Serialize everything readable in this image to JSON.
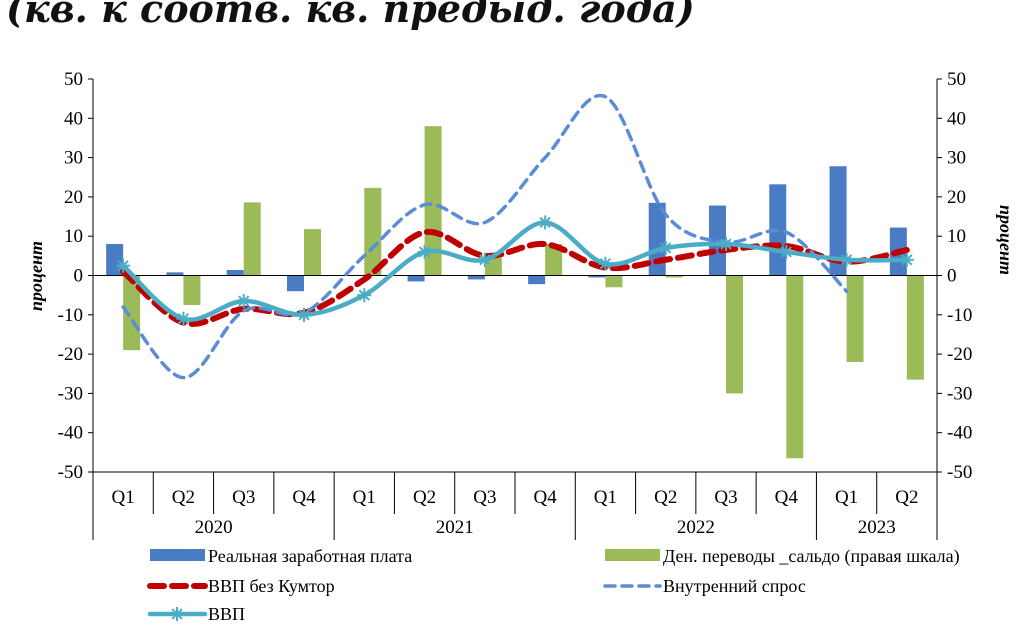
{
  "title": "(кв. к соотв. кв. предыд. года)",
  "chart_data": {
    "type": "bar",
    "categories": [
      "Q1",
      "Q2",
      "Q3",
      "Q4",
      "Q1",
      "Q2",
      "Q3",
      "Q4",
      "Q1",
      "Q2",
      "Q3",
      "Q4",
      "Q1",
      "Q2"
    ],
    "years": [
      {
        "label": "2020",
        "span": 4
      },
      {
        "label": "2021",
        "span": 4
      },
      {
        "label": "2022",
        "span": 4
      },
      {
        "label": "2023",
        "span": 2
      }
    ],
    "ylabel": "процент",
    "ylabel_right": "процент",
    "ylim": [
      -50,
      50
    ],
    "yticks": [
      -50,
      -40,
      -30,
      -20,
      -10,
      0,
      10,
      20,
      30,
      40,
      50
    ],
    "y2lim": [
      -50,
      50
    ],
    "grid": false,
    "legend_position": "bottom",
    "series": [
      {
        "name": "Реальная заработная плата",
        "type": "bar",
        "color": "#4a7cc3",
        "values": [
          8,
          0.8,
          1.4,
          -4,
          0,
          -1.5,
          -1,
          -2.2,
          -0.5,
          18.5,
          17.8,
          23.2,
          27.8,
          12.2
        ]
      },
      {
        "name": "Ден. переводы _сальдо (правая шкала)",
        "type": "bar",
        "axis": "right",
        "color": "#9bbb59",
        "values": [
          -19,
          -7.5,
          18.6,
          11.8,
          22.3,
          38,
          4.5,
          8,
          -3,
          -0.5,
          -30,
          -46.5,
          -22,
          -26.5
        ]
      },
      {
        "name": "ВВП без Кумтор",
        "type": "line",
        "style": "dashed",
        "color": "#c00000",
        "values": [
          1,
          -12,
          -8.5,
          -9.5,
          -1,
          11,
          5,
          8,
          2,
          4,
          6.5,
          7.5,
          3.5,
          6.5
        ]
      },
      {
        "name": "Внутренний спрос",
        "type": "line",
        "style": "dashed",
        "color": "#5b8dd6",
        "values": [
          -8,
          -26,
          -9,
          -9.5,
          5,
          18,
          13.5,
          30,
          45.5,
          15.5,
          8.5,
          11,
          -4,
          null
        ]
      },
      {
        "name": "ВВП",
        "type": "line",
        "style": "solid-star",
        "color": "#4bacc6",
        "values": [
          2.5,
          -11,
          -6.5,
          -10,
          -5,
          6,
          4,
          13.5,
          3,
          7,
          8,
          6,
          4,
          4
        ]
      }
    ]
  }
}
